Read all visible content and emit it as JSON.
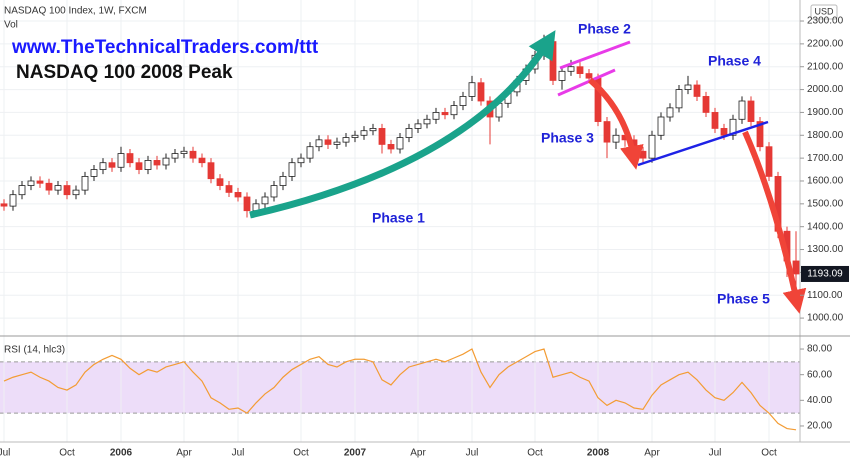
{
  "header": {
    "symbol": "NASDAQ 100 Index, 1W, FXCM",
    "volume": "Vol",
    "currency": "USD"
  },
  "chart_data": [
    {
      "type": "candlestick",
      "title": "NASDAQ 100 2008 Peak",
      "subtitle": "www.TheTechnicalTraders.com/ttt",
      "categories": [
        "Jul",
        null,
        null,
        null,
        null,
        null,
        null,
        "Oct",
        null,
        null,
        null,
        null,
        null,
        "2006",
        null,
        null,
        null,
        null,
        null,
        null,
        "Apr",
        null,
        null,
        null,
        null,
        null,
        "Jul",
        null,
        null,
        null,
        null,
        null,
        null,
        "Oct",
        null,
        null,
        null,
        null,
        null,
        "2007",
        null,
        null,
        null,
        null,
        null,
        null,
        "Apr",
        null,
        null,
        null,
        null,
        null,
        "Jul",
        null,
        null,
        null,
        null,
        null,
        null,
        "Oct",
        null,
        null,
        null,
        null,
        null,
        null,
        "2008",
        null,
        null,
        null,
        null,
        null,
        "Apr",
        null,
        null,
        null,
        null,
        null,
        null,
        "Jul",
        null,
        null,
        null,
        null,
        null,
        "Oct",
        null,
        null,
        null
      ],
      "open": [
        1500,
        1490,
        1540,
        1580,
        1600,
        1590,
        1560,
        1580,
        1540,
        1560,
        1620,
        1650,
        1680,
        1660,
        1720,
        1680,
        1650,
        1690,
        1670,
        1700,
        1720,
        1730,
        1700,
        1680,
        1610,
        1580,
        1550,
        1530,
        1470,
        1500,
        1530,
        1580,
        1620,
        1680,
        1700,
        1750,
        1780,
        1760,
        1770,
        1790,
        1800,
        1820,
        1830,
        1760,
        1740,
        1790,
        1830,
        1850,
        1870,
        1900,
        1890,
        1930,
        1970,
        2030,
        1950,
        1880,
        1940,
        1990,
        2040,
        2090,
        2150,
        2210,
        2040,
        2080,
        2100,
        2070,
        2050,
        1860,
        1770,
        1800,
        1780,
        1730,
        1700,
        1800,
        1880,
        1920,
        2000,
        2020,
        1970,
        1900,
        1830,
        1800,
        1870,
        1950,
        1860,
        1750,
        1620,
        1380,
        1250
      ],
      "high": [
        1520,
        1560,
        1600,
        1620,
        1620,
        1610,
        1600,
        1600,
        1580,
        1640,
        1670,
        1700,
        1700,
        1750,
        1740,
        1700,
        1710,
        1710,
        1720,
        1740,
        1750,
        1750,
        1720,
        1700,
        1630,
        1600,
        1570,
        1550,
        1520,
        1550,
        1600,
        1640,
        1700,
        1720,
        1770,
        1800,
        1800,
        1790,
        1810,
        1820,
        1840,
        1850,
        1850,
        1780,
        1810,
        1850,
        1870,
        1890,
        1920,
        1920,
        1950,
        1990,
        2060,
        2050,
        1970,
        1960,
        2010,
        2060,
        2110,
        2170,
        2240,
        2230,
        2100,
        2130,
        2120,
        2090,
        2070,
        1880,
        1830,
        1830,
        1800,
        1750,
        1820,
        1900,
        1940,
        2020,
        2060,
        2040,
        1990,
        1920,
        1850,
        1890,
        1970,
        1970,
        1880,
        1770,
        1640,
        1400,
        1380
      ],
      "low": [
        1470,
        1470,
        1520,
        1560,
        1570,
        1540,
        1540,
        1520,
        1520,
        1540,
        1600,
        1630,
        1640,
        1640,
        1660,
        1630,
        1630,
        1650,
        1650,
        1680,
        1700,
        1680,
        1660,
        1590,
        1560,
        1530,
        1510,
        1440,
        1450,
        1480,
        1510,
        1560,
        1600,
        1660,
        1680,
        1730,
        1740,
        1740,
        1750,
        1770,
        1780,
        1800,
        1720,
        1720,
        1720,
        1770,
        1810,
        1830,
        1850,
        1870,
        1870,
        1910,
        1950,
        1930,
        1760,
        1860,
        1920,
        1970,
        2020,
        2070,
        2130,
        2020,
        2000,
        2060,
        2050,
        2030,
        1840,
        1700,
        1740,
        1750,
        1690,
        1680,
        1680,
        1780,
        1860,
        1900,
        1980,
        1950,
        1880,
        1810,
        1780,
        1780,
        1850,
        1840,
        1730,
        1600,
        1350,
        1180,
        1040
      ],
      "close": [
        1490,
        1540,
        1580,
        1600,
        1590,
        1560,
        1580,
        1540,
        1560,
        1620,
        1650,
        1680,
        1660,
        1720,
        1680,
        1650,
        1690,
        1670,
        1700,
        1720,
        1730,
        1700,
        1680,
        1610,
        1580,
        1550,
        1530,
        1470,
        1500,
        1530,
        1580,
        1620,
        1680,
        1700,
        1750,
        1780,
        1760,
        1770,
        1790,
        1800,
        1820,
        1830,
        1760,
        1740,
        1790,
        1830,
        1850,
        1870,
        1900,
        1890,
        1930,
        1970,
        2030,
        1950,
        1880,
        1940,
        1990,
        2040,
        2090,
        2150,
        2210,
        2040,
        2080,
        2100,
        2070,
        2050,
        1860,
        1770,
        1800,
        1780,
        1730,
        1700,
        1800,
        1880,
        1920,
        2000,
        2020,
        1970,
        1900,
        1830,
        1800,
        1870,
        1950,
        1860,
        1750,
        1620,
        1380,
        1250,
        1193.09
      ],
      "up_color": "#ffffff",
      "down_color": "#e53935",
      "wick_color": "#222222",
      "ylim": [
        926,
        2392
      ],
      "yticks": [
        {
          "value": 1000,
          "label": "1000.00"
        },
        {
          "value": 1100,
          "label": "1100.00"
        },
        {
          "value": 1200,
          "label": "1200.00"
        },
        {
          "value": 1300,
          "label": "1300.00"
        },
        {
          "value": 1400,
          "label": "1400.00"
        },
        {
          "value": 1500,
          "label": "1500.00"
        },
        {
          "value": 1600,
          "label": "1600.00"
        },
        {
          "value": 1700,
          "label": "1700.00"
        },
        {
          "value": 1800,
          "label": "1800.00"
        },
        {
          "value": 1900,
          "label": "1900.00"
        },
        {
          "value": 2000,
          "label": "2000.00"
        },
        {
          "value": 2100,
          "label": "2100.00"
        },
        {
          "value": 2200,
          "label": "2200.00"
        },
        {
          "value": 2300,
          "label": "2300.00"
        }
      ],
      "grid": true,
      "annotations": [
        "Phase 1",
        "Phase 2",
        "Phase 3",
        "Phase 4",
        "Phase 5"
      ]
    },
    {
      "type": "line",
      "title": "RSI (14, hlc3)",
      "values": [
        55,
        58,
        60,
        62,
        58,
        55,
        50,
        48,
        52,
        62,
        68,
        72,
        75,
        72,
        65,
        60,
        64,
        62,
        66,
        68,
        70,
        62,
        55,
        42,
        38,
        33,
        34,
        30,
        38,
        45,
        50,
        58,
        64,
        68,
        72,
        74,
        68,
        66,
        70,
        72,
        72,
        70,
        56,
        52,
        60,
        66,
        68,
        70,
        72,
        70,
        73,
        76,
        80,
        62,
        50,
        60,
        66,
        70,
        74,
        78,
        80,
        58,
        60,
        62,
        58,
        55,
        42,
        36,
        40,
        38,
        34,
        33,
        44,
        52,
        56,
        60,
        62,
        56,
        48,
        42,
        40,
        46,
        54,
        46,
        36,
        30,
        22,
        18,
        17
      ],
      "color": "#f39c34",
      "band": [
        30,
        70
      ],
      "band_color": "#e8d5f7",
      "ylim": [
        7.5,
        88.6
      ],
      "yticks": [
        {
          "value": 20,
          "label": "20.00"
        },
        {
          "value": 40,
          "label": "40.00"
        },
        {
          "value": 60,
          "label": "60.00"
        },
        {
          "value": 80,
          "label": "80.00"
        }
      ]
    }
  ]
}
